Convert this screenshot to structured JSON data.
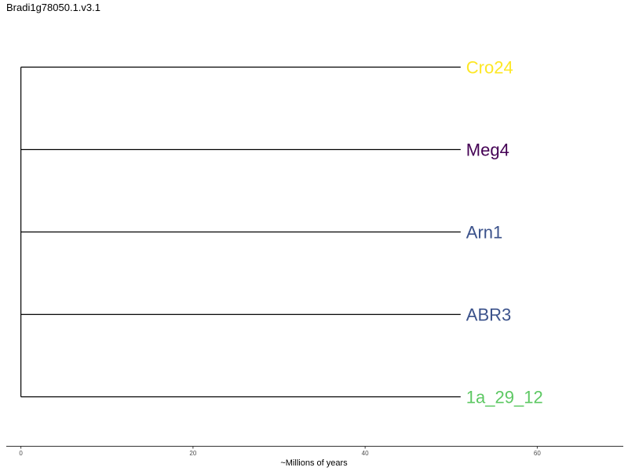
{
  "title": "Bradi1g78050.1.v3.1",
  "chart_data": {
    "type": "dendrogram",
    "xlabel": "~Millions of years",
    "xlim": [
      -1.7,
      70
    ],
    "x_ticks": [
      {
        "value": 0,
        "label": "0"
      },
      {
        "value": 20,
        "label": "20"
      },
      {
        "value": 40,
        "label": "40"
      },
      {
        "value": 60,
        "label": "60"
      }
    ],
    "root_x": 0,
    "branch_end_x": 51.1,
    "tips": [
      {
        "label": "Cro24",
        "color": "#FDE725"
      },
      {
        "label": "Meg4",
        "color": "#440154"
      },
      {
        "label": "Arn1",
        "color": "#3B528B"
      },
      {
        "label": "ABR3",
        "color": "#3B528B"
      },
      {
        "label": "1a_29_12",
        "color": "#5DC863"
      }
    ],
    "grid": false,
    "legend": "none",
    "line_color": "#000000"
  }
}
